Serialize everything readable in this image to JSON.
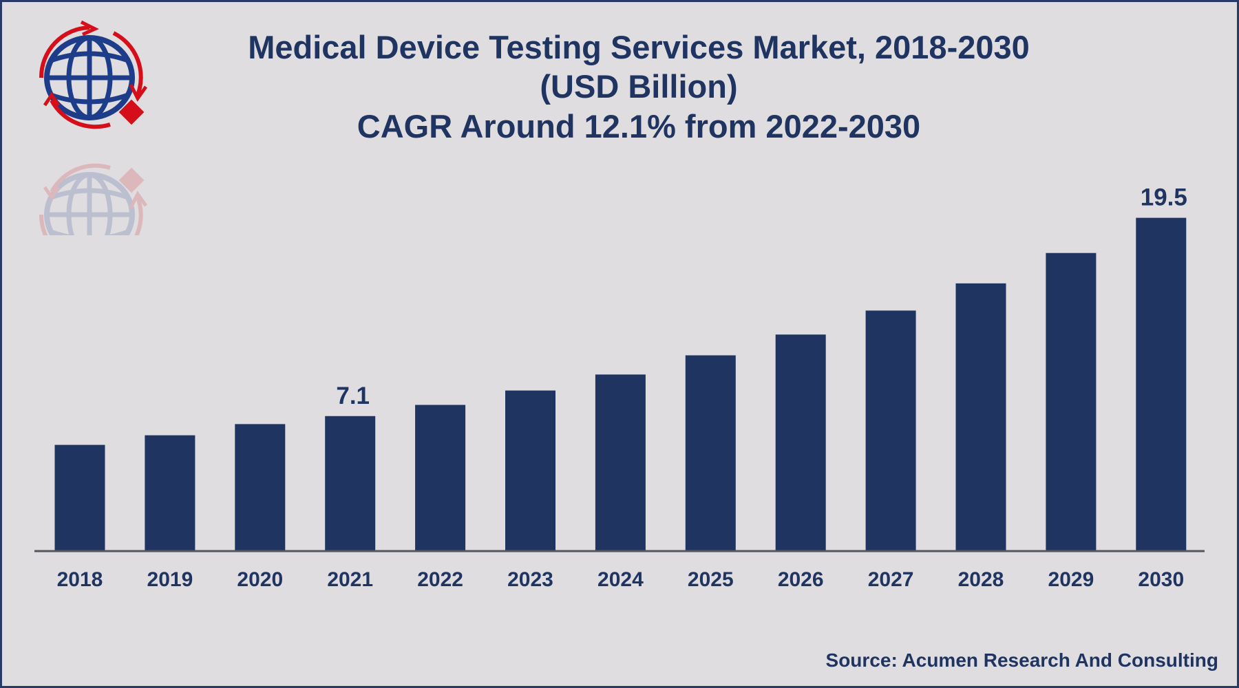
{
  "title_lines": [
    "Medical Device Testing Services Market, 2018-2030",
    "(USD Billion)",
    "CAGR Around 12.1% from 2022-2030"
  ],
  "source": "Source: Acumen Research And Consulting",
  "logo_icon": "globe-with-arrows-logo",
  "colors": {
    "bar": "#1f3461",
    "text": "#1f3461",
    "background": "#dfdde0",
    "logo_blue": "#1d3c8a",
    "logo_red": "#d40f1a"
  },
  "chart_data": {
    "type": "bar",
    "categories": [
      "2018",
      "2019",
      "2020",
      "2021",
      "2022",
      "2023",
      "2024",
      "2025",
      "2026",
      "2027",
      "2028",
      "2029",
      "2030"
    ],
    "values": [
      5.3,
      5.9,
      6.6,
      7.1,
      7.8,
      8.7,
      9.7,
      10.9,
      12.2,
      13.7,
      15.4,
      17.3,
      19.5
    ],
    "data_labels": {
      "2021": "7.1",
      "2030": "19.5"
    },
    "title": "Medical Device Testing Services Market, 2018-2030 (USD Billion)",
    "xlabel": "",
    "ylabel": "",
    "grid": false,
    "legend": "none"
  }
}
